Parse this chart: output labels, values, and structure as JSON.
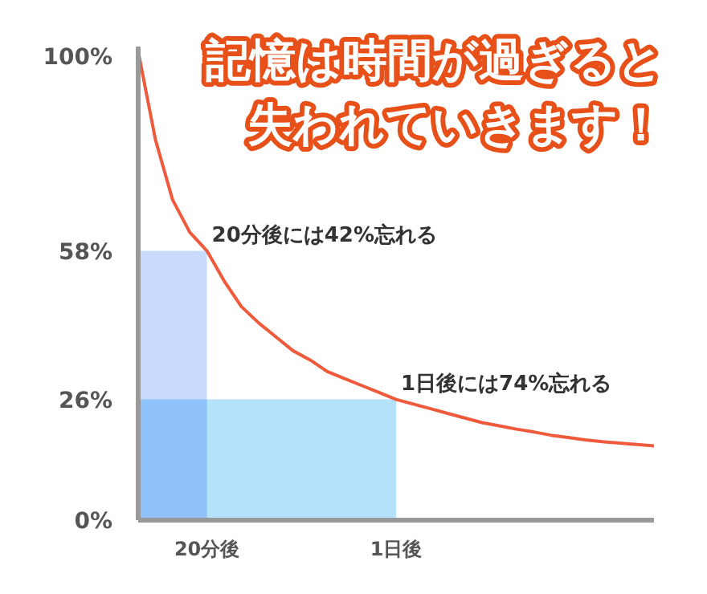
{
  "chart_data": {
    "type": "line",
    "title": "記憶は時間が過ぎると失われていきます！",
    "categories": [
      null,
      null,
      null,
      null,
      "20分後",
      null,
      null,
      null,
      null,
      null,
      null,
      null,
      null,
      null,
      null,
      "1日後",
      null,
      null,
      null,
      null,
      null,
      null,
      null,
      null,
      null,
      null,
      null,
      null,
      null,
      null,
      null
    ],
    "ylim": [
      0,
      102
    ],
    "yticks": [
      {
        "value": 0,
        "label": "0%"
      },
      {
        "value": 26,
        "label": "26%"
      },
      {
        "value": 58,
        "label": "58%"
      },
      {
        "value": 100,
        "label": "100%"
      }
    ],
    "grid": false,
    "marker": "none",
    "line_style": "solid",
    "series": [
      {
        "type": "area",
        "color": "#c9dbfc",
        "values": [
          58,
          58,
          58,
          58,
          58,
          null,
          null,
          null,
          null,
          null,
          null,
          null,
          null,
          null,
          null,
          null,
          null,
          null,
          null,
          null,
          null,
          null,
          null,
          null,
          null,
          null,
          null,
          null,
          null,
          null,
          null
        ]
      },
      {
        "type": "area",
        "color": "#b5e2fb",
        "values": [
          26,
          26,
          26,
          26,
          26,
          26,
          26,
          26,
          26,
          26,
          26,
          26,
          26,
          26,
          26,
          26,
          null,
          null,
          null,
          null,
          null,
          null,
          null,
          null,
          null,
          null,
          null,
          null,
          null,
          null,
          null
        ]
      },
      {
        "color": "#f05a3c",
        "values": [
          101,
          82,
          69,
          62,
          58,
          51.5,
          46,
          42.5,
          39.5,
          36.5,
          34.5,
          32,
          30.5,
          29,
          27.5,
          26,
          25,
          24,
          23,
          22,
          21,
          20.3,
          19.6,
          19,
          18.3,
          17.8,
          17.3,
          16.9,
          16.6,
          16.3,
          16
        ]
      }
    ],
    "annotations": [
      {
        "text": "20分後には42%忘れる",
        "x": "20分後",
        "y": 58
      },
      {
        "text": "1日後には74%忘れる",
        "x": "1日後",
        "y": 26
      }
    ]
  }
}
